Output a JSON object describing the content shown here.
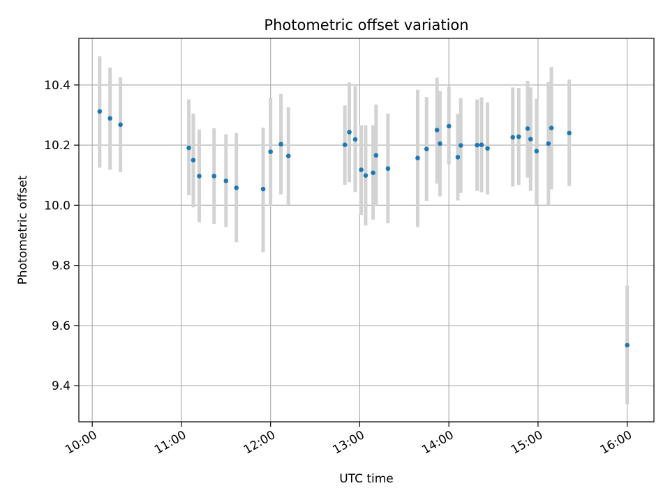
{
  "chart_data": {
    "type": "scatter",
    "title": "Photometric offset variation",
    "xlabel": "UTC time",
    "ylabel": "Photometric offset",
    "xlim": [
      "09:51",
      "16:18"
    ],
    "ylim": [
      9.28,
      10.555
    ],
    "grid": true,
    "x_ticks": [
      "10:00",
      "11:00",
      "12:00",
      "13:00",
      "14:00",
      "15:00",
      "16:00"
    ],
    "y_ticks": [
      "9.4",
      "9.6",
      "9.8",
      "10.0",
      "10.2",
      "10.4"
    ],
    "marker_color": "#1f77b4",
    "errorbar_color": "#d3d3d3",
    "points": [
      {
        "x": "10:05",
        "y": 10.312,
        "low": 10.125,
        "high": 10.496
      },
      {
        "x": "10:12",
        "y": 10.289,
        "low": 10.118,
        "high": 10.458
      },
      {
        "x": "10:19",
        "y": 10.268,
        "low": 10.11,
        "high": 10.426
      },
      {
        "x": "11:05",
        "y": 10.191,
        "low": 10.033,
        "high": 10.352
      },
      {
        "x": "11:08",
        "y": 10.15,
        "low": 9.993,
        "high": 10.305
      },
      {
        "x": "11:12",
        "y": 10.097,
        "low": 9.944,
        "high": 10.252
      },
      {
        "x": "11:22",
        "y": 10.097,
        "low": 9.938,
        "high": 10.256
      },
      {
        "x": "11:30",
        "y": 10.081,
        "low": 9.928,
        "high": 10.236
      },
      {
        "x": "11:37",
        "y": 10.058,
        "low": 9.877,
        "high": 10.24
      },
      {
        "x": "11:55",
        "y": 10.054,
        "low": 9.844,
        "high": 10.258
      },
      {
        "x": "12:00",
        "y": 10.178,
        "low": 9.998,
        "high": 10.358
      },
      {
        "x": "12:07",
        "y": 10.203,
        "low": 10.036,
        "high": 10.37
      },
      {
        "x": "12:12",
        "y": 10.164,
        "low": 10.002,
        "high": 10.326
      },
      {
        "x": "12:50",
        "y": 10.201,
        "low": 10.068,
        "high": 10.332
      },
      {
        "x": "12:53",
        "y": 10.243,
        "low": 10.077,
        "high": 10.408
      },
      {
        "x": "12:57",
        "y": 10.219,
        "low": 10.044,
        "high": 10.396
      },
      {
        "x": "13:01",
        "y": 10.118,
        "low": 9.968,
        "high": 10.266
      },
      {
        "x": "13:04",
        "y": 10.099,
        "low": 9.933,
        "high": 10.266
      },
      {
        "x": "13:09",
        "y": 10.108,
        "low": 9.952,
        "high": 10.266
      },
      {
        "x": "13:11",
        "y": 10.166,
        "low": 9.998,
        "high": 10.335
      },
      {
        "x": "13:19",
        "y": 10.122,
        "low": 9.94,
        "high": 10.305
      },
      {
        "x": "13:39",
        "y": 10.157,
        "low": 9.928,
        "high": 10.384
      },
      {
        "x": "13:45",
        "y": 10.187,
        "low": 10.015,
        "high": 10.36
      },
      {
        "x": "13:52",
        "y": 10.25,
        "low": 10.072,
        "high": 10.424
      },
      {
        "x": "13:54",
        "y": 10.205,
        "low": 10.03,
        "high": 10.38
      },
      {
        "x": "14:00",
        "y": 10.263,
        "low": 10.136,
        "high": 10.394
      },
      {
        "x": "14:06",
        "y": 10.16,
        "low": 10.016,
        "high": 10.304
      },
      {
        "x": "14:08",
        "y": 10.199,
        "low": 10.041,
        "high": 10.356
      },
      {
        "x": "14:19",
        "y": 10.2,
        "low": 10.048,
        "high": 10.352
      },
      {
        "x": "14:22",
        "y": 10.201,
        "low": 10.043,
        "high": 10.359
      },
      {
        "x": "14:26",
        "y": 10.189,
        "low": 10.036,
        "high": 10.342
      },
      {
        "x": "14:43",
        "y": 10.226,
        "low": 10.062,
        "high": 10.392
      },
      {
        "x": "14:47",
        "y": 10.228,
        "low": 10.068,
        "high": 10.39
      },
      {
        "x": "14:53",
        "y": 10.255,
        "low": 10.092,
        "high": 10.414
      },
      {
        "x": "14:55",
        "y": 10.22,
        "low": 10.048,
        "high": 10.392
      },
      {
        "x": "14:59",
        "y": 10.18,
        "low": 10.002,
        "high": 10.354
      },
      {
        "x": "15:07",
        "y": 10.205,
        "low": 10.0,
        "high": 10.41
      },
      {
        "x": "15:09",
        "y": 10.257,
        "low": 10.053,
        "high": 10.46
      },
      {
        "x": "15:21",
        "y": 10.24,
        "low": 10.064,
        "high": 10.418
      },
      {
        "x": "16:00",
        "y": 9.535,
        "low": 9.338,
        "high": 9.733
      }
    ]
  }
}
